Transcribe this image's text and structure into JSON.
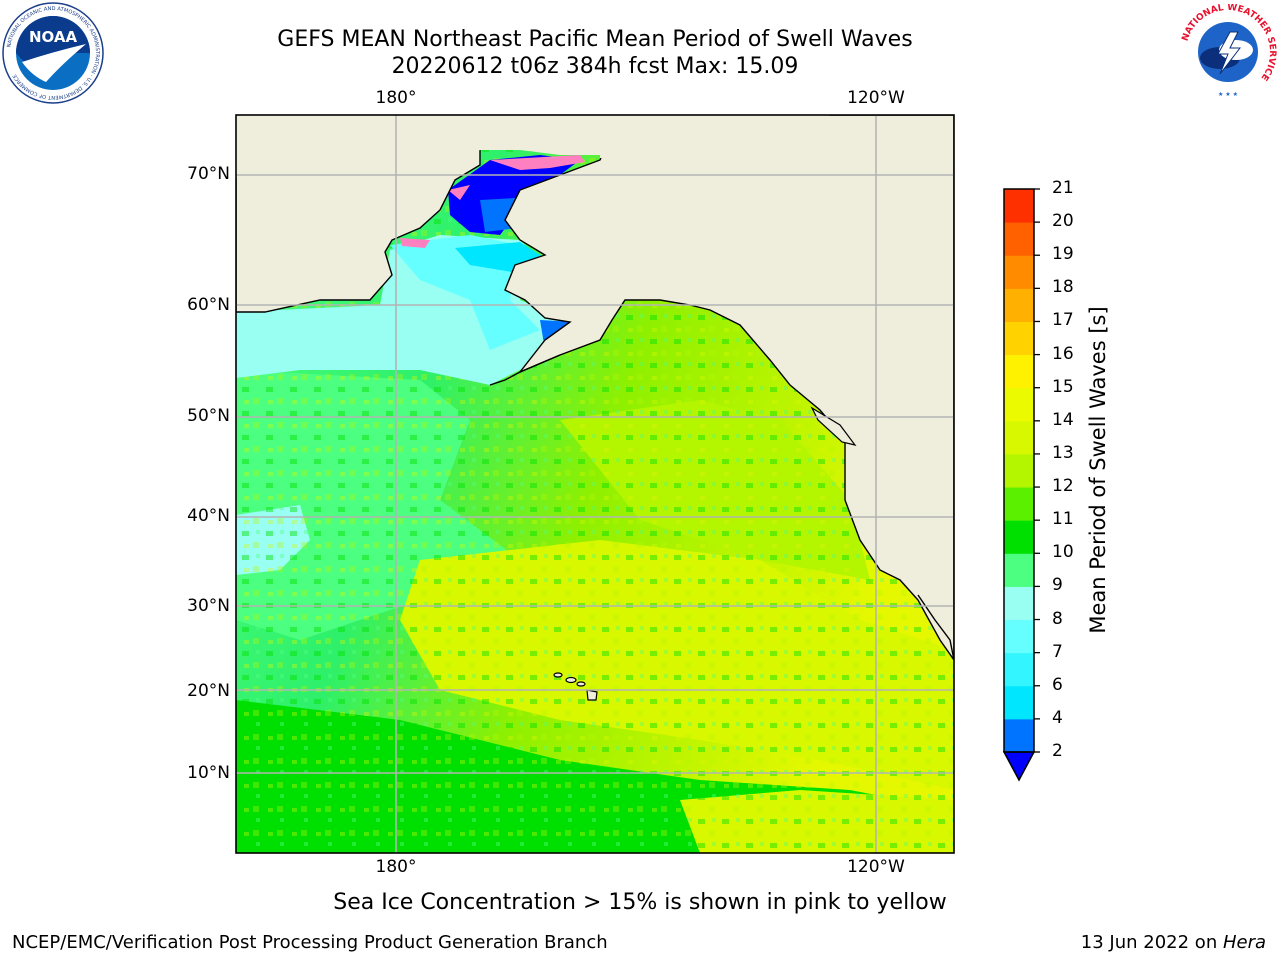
{
  "header": {
    "title_line1": "GEFS MEAN Northeast Pacific Mean Period of Swell Waves",
    "title_line2": "20220612 t06z 384h fcst   Max: 15.09"
  },
  "logos": {
    "left": "NOAA",
    "left_ring_text": "NATIONAL OCEANIC AND ATMOSPHERIC ADMINISTRATION · U.S. DEPARTMENT OF COMMERCE",
    "right_ring_text": "NATIONAL WEATHER SERVICE"
  },
  "map": {
    "lon_labels": [
      "180°",
      "120°W"
    ],
    "lat_labels": [
      "70°N",
      "60°N",
      "50°N",
      "40°N",
      "30°N",
      "20°N",
      "10°N"
    ],
    "colors": {
      "land": "#efeddc",
      "coast": "#000000",
      "grid": "#b4b4b4",
      "ice": "#ff80c0"
    }
  },
  "colorbar": {
    "label": "Mean Period of Swell Waves [s]",
    "ticks": [
      "2",
      "4",
      "6",
      "7",
      "8",
      "9",
      "10",
      "11",
      "12",
      "13",
      "14",
      "15",
      "16",
      "17",
      "18",
      "19",
      "20",
      "21"
    ],
    "colors": [
      "#0073ff",
      "#00e6ff",
      "#33f5ff",
      "#66ffff",
      "#99fff2",
      "#4dff80",
      "#00e000",
      "#5af000",
      "#b4f500",
      "#d8f800",
      "#ecfa00",
      "#fff200",
      "#ffd200",
      "#ffb000",
      "#ff8c00",
      "#ff6000",
      "#ff3000",
      "#ff0000"
    ],
    "under_color": "#0000ff"
  },
  "notes": {
    "ice": "Sea Ice Concentration > 15% is shown in pink to yellow"
  },
  "footer": {
    "left": "NCEP/EMC/Verification Post Processing Product Generation Branch",
    "date": "13 Jun 2022 on ",
    "machine": "Hera"
  }
}
